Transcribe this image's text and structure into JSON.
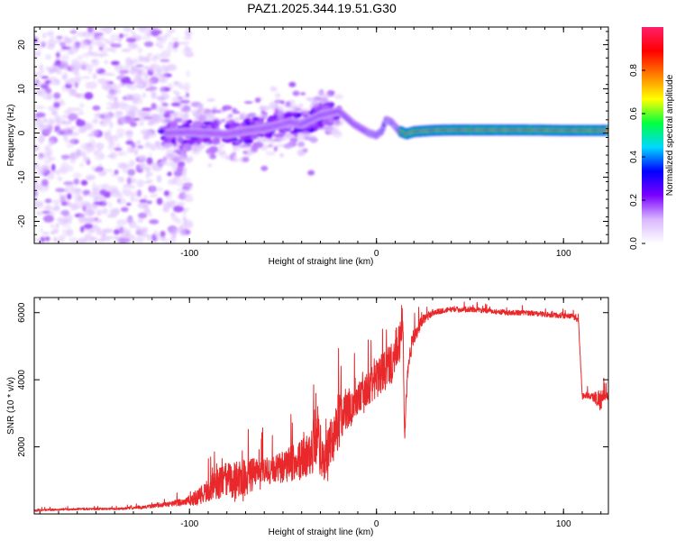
{
  "title": "PAZ1.2025.344.19.51.G30",
  "chart_data": [
    {
      "type": "heatmap",
      "title": "PAZ1.2025.344.19.51.G30",
      "xlabel": "Height of straight line (km)",
      "ylabel": "Frequency (Hz)",
      "xlim": [
        -183,
        124
      ],
      "ylim": [
        -25,
        24
      ],
      "xticks": [
        -100,
        0,
        100
      ],
      "xtick_labels": [
        "-100",
        "0",
        "100"
      ],
      "yticks": [
        -20,
        -10,
        0,
        10,
        20
      ],
      "ytick_labels": [
        "-20",
        "-10",
        "0",
        "10",
        "20"
      ],
      "ridge": {
        "description": "dominant frequency track",
        "x": [
          -112,
          -100,
          -90,
          -80,
          -70,
          -60,
          -52,
          -46,
          -40,
          -35,
          -30,
          -25,
          -20,
          -16,
          -12,
          -8,
          -4,
          0,
          3,
          5,
          8,
          12,
          16,
          20,
          30,
          40,
          60,
          80,
          100,
          124
        ],
        "y": [
          0.0,
          0.2,
          0.0,
          -0.3,
          0.5,
          1.0,
          1.8,
          2.5,
          2.0,
          3.0,
          4.0,
          4.5,
          5.0,
          3.5,
          2.0,
          1.0,
          0.0,
          -0.5,
          0.5,
          3.0,
          2.5,
          0.5,
          -0.2,
          0.3,
          0.6,
          0.7,
          0.7,
          0.7,
          0.6,
          0.6
        ]
      },
      "colorbar": {
        "label": "Normalized spectral amplitude",
        "range": [
          0.0,
          1.0
        ],
        "ticks": [
          0.0,
          0.2,
          0.4,
          0.6,
          0.8
        ],
        "tick_labels": [
          "0.0",
          "0.2",
          "0.4",
          "0.6",
          "0.8"
        ],
        "colors": [
          "#ffffff",
          "#d9b8ff",
          "#7b00ff",
          "#0000ff",
          "#00d8ff",
          "#00ff40",
          "#ffff00",
          "#ff7f00",
          "#ff0000",
          "#ff1f6a"
        ]
      }
    },
    {
      "type": "line",
      "xlabel": "Height of straight line (km)",
      "ylabel": "SNR (10 * v/v)",
      "xlim": [
        -183,
        124
      ],
      "ylim": [
        0,
        6450
      ],
      "xticks": [
        -100,
        0,
        100
      ],
      "xtick_labels": [
        "-100",
        "0",
        "100"
      ],
      "yticks": [
        2000,
        4000,
        6000
      ],
      "ytick_labels": [
        "2000",
        "4000",
        "6000"
      ],
      "color": "#e8282a",
      "series": [
        {
          "name": "SNR",
          "x": [
            -183,
            -160,
            -140,
            -125,
            -110,
            -100,
            -95,
            -90,
            -85,
            -80,
            -75,
            -70,
            -65,
            -60,
            -55,
            -50,
            -45,
            -40,
            -35,
            -32,
            -30,
            -28,
            -25,
            -22,
            -20,
            -18,
            -15,
            -12,
            -10,
            -5,
            0,
            5,
            10,
            12,
            14,
            15,
            17,
            20,
            25,
            30,
            35,
            40,
            50,
            60,
            70,
            80,
            90,
            100,
            105,
            108,
            110,
            112,
            115,
            118,
            120,
            122,
            124
          ],
          "y": [
            100,
            150,
            150,
            200,
            300,
            400,
            500,
            700,
            900,
            1000,
            1000,
            1100,
            1200,
            1250,
            1300,
            1400,
            1500,
            1600,
            1800,
            2500,
            1900,
            1600,
            2000,
            2500,
            2800,
            3000,
            3100,
            3300,
            3400,
            3700,
            4000,
            4300,
            4700,
            5000,
            5900,
            2300,
            4700,
            5300,
            5800,
            6000,
            6050,
            6100,
            6100,
            6050,
            6000,
            6000,
            5950,
            5900,
            5900,
            5750,
            3500,
            3550,
            3500,
            3450,
            3400,
            3500,
            3500
          ],
          "noise_amplitude": [
            60,
            60,
            60,
            80,
            150,
            300,
            500,
            700,
            900,
            1100,
            1100,
            1100,
            1000,
            900,
            800,
            1000,
            1100,
            1200,
            1400,
            2000,
            1600,
            1200,
            1400,
            1600,
            1800,
            1300,
            1200,
            1100,
            1000,
            1000,
            1200,
            1200,
            1500,
            1500,
            900,
            400,
            900,
            500,
            300,
            200,
            150,
            150,
            150,
            150,
            150,
            150,
            150,
            150,
            150,
            150,
            200,
            200,
            200,
            500,
            700,
            300,
            200
          ]
        }
      ]
    }
  ]
}
